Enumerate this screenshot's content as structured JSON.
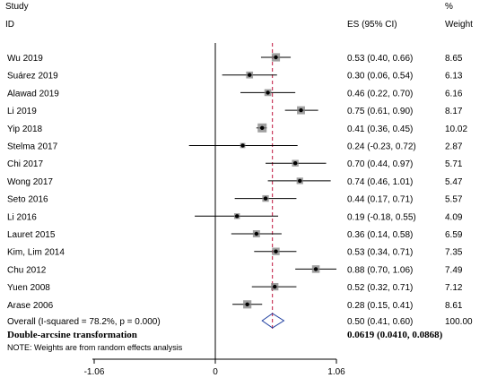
{
  "header": {
    "study_label": "Study",
    "id_label": "ID",
    "es_label": "ES (95% CI)",
    "pct_label": "%",
    "weight_label": "Weight"
  },
  "chart_data": {
    "type": "forest",
    "xlim": [
      -1.06,
      1.06
    ],
    "ticks": [
      "-1.06",
      "0",
      "1.06"
    ],
    "tick_values": [
      -1.06,
      0,
      1.06
    ],
    "null_line": 0,
    "overall_line": 0.5,
    "studies": [
      {
        "label": "Wu 2019",
        "es": 0.53,
        "lo": 0.4,
        "hi": 0.66,
        "ci_text": "0.53 (0.40, 0.66)",
        "weight_text": "8.65",
        "weight": 8.65
      },
      {
        "label": "Suárez 2019",
        "es": 0.3,
        "lo": 0.06,
        "hi": 0.54,
        "ci_text": "0.30 (0.06, 0.54)",
        "weight_text": "6.13",
        "weight": 6.13
      },
      {
        "label": "Alawad 2019",
        "es": 0.46,
        "lo": 0.22,
        "hi": 0.7,
        "ci_text": "0.46 (0.22, 0.70)",
        "weight_text": "6.16",
        "weight": 6.16
      },
      {
        "label": "Li 2019",
        "es": 0.75,
        "lo": 0.61,
        "hi": 0.9,
        "ci_text": "0.75 (0.61, 0.90)",
        "weight_text": "8.17",
        "weight": 8.17
      },
      {
        "label": "Yip 2018",
        "es": 0.41,
        "lo": 0.36,
        "hi": 0.45,
        "ci_text": "0.41 (0.36, 0.45)",
        "weight_text": "10.02",
        "weight": 10.02
      },
      {
        "label": "Stelma 2017",
        "es": 0.24,
        "lo": -0.23,
        "hi": 0.72,
        "ci_text": "0.24 (-0.23, 0.72)",
        "weight_text": "2.87",
        "weight": 2.87
      },
      {
        "label": "Chi 2017",
        "es": 0.7,
        "lo": 0.44,
        "hi": 0.97,
        "ci_text": "0.70 (0.44, 0.97)",
        "weight_text": "5.71",
        "weight": 5.71
      },
      {
        "label": "Wong 2017",
        "es": 0.74,
        "lo": 0.46,
        "hi": 1.01,
        "ci_text": "0.74 (0.46, 1.01)",
        "weight_text": "5.47",
        "weight": 5.47
      },
      {
        "label": "Seto 2016",
        "es": 0.44,
        "lo": 0.17,
        "hi": 0.71,
        "ci_text": "0.44 (0.17, 0.71)",
        "weight_text": "5.57",
        "weight": 5.57
      },
      {
        "label": "Li 2016",
        "es": 0.19,
        "lo": -0.18,
        "hi": 0.55,
        "ci_text": "0.19 (-0.18, 0.55)",
        "weight_text": "4.09",
        "weight": 4.09
      },
      {
        "label": "Lauret 2015",
        "es": 0.36,
        "lo": 0.14,
        "hi": 0.58,
        "ci_text": "0.36 (0.14, 0.58)",
        "weight_text": "6.59",
        "weight": 6.59
      },
      {
        "label": "Kim, Lim 2014",
        "es": 0.53,
        "lo": 0.34,
        "hi": 0.71,
        "ci_text": "0.53 (0.34, 0.71)",
        "weight_text": "7.35",
        "weight": 7.35
      },
      {
        "label": "Chu 2012",
        "es": 0.88,
        "lo": 0.7,
        "hi": 1.06,
        "ci_text": "0.88 (0.70, 1.06)",
        "weight_text": "7.49",
        "weight": 7.49
      },
      {
        "label": "Yuen 2008",
        "es": 0.52,
        "lo": 0.32,
        "hi": 0.71,
        "ci_text": "0.52 (0.32, 0.71)",
        "weight_text": "7.12",
        "weight": 7.12
      },
      {
        "label": "Arase 2006",
        "es": 0.28,
        "lo": 0.15,
        "hi": 0.41,
        "ci_text": "0.28 (0.15, 0.41)",
        "weight_text": "8.61",
        "weight": 8.61
      }
    ],
    "overall": {
      "label": "Overall  (I-squared = 78.2%, p = 0.000)",
      "es": 0.5,
      "lo": 0.41,
      "hi": 0.6,
      "ci_text": "0.50 (0.41, 0.60)",
      "weight_text": "100.00"
    },
    "transform_label": "Double-arcsine transformation",
    "transform_value": "0.0619 (0.0410, 0.0868)",
    "note": "NOTE: Weights are from random effects analysis",
    "colors": {
      "overall_line": "#c0143c",
      "diamond": "#1f3fa0",
      "box": "#808080",
      "point": "#000000"
    }
  }
}
